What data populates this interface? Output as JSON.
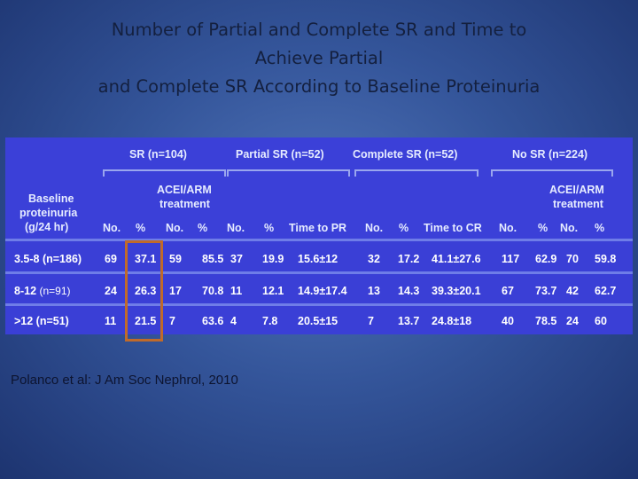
{
  "title": {
    "line1": "Number of Partial and Complete SR and Time to",
    "line2": "Achieve Partial",
    "line3": "and Complete SR According to Baseline Proteinuria"
  },
  "table": {
    "group_headers": {
      "sr": "SR (n=104)",
      "partial_sr": "Partial SR (n=52)",
      "complete_sr": "Complete SR (n=52)",
      "no_sr": "No SR (n=224)"
    },
    "sub_headers": {
      "acei_left_1": "ACEI/ARM",
      "acei_left_2": "treatment",
      "acei_right_1": "ACEI/ARM",
      "acei_right_2": "treatment"
    },
    "row_header": {
      "line1": "Baseline",
      "line2": "proteinuria",
      "line3": "(g/24 hr)"
    },
    "columns": [
      "No.",
      "%",
      "No.",
      "%",
      "No.",
      "%",
      "Time to PR",
      "No.",
      "%",
      "Time to CR",
      "No.",
      "%",
      "No.",
      "%"
    ],
    "rows": [
      {
        "label_main": "3.5-8 (n=186)",
        "label_small": "",
        "cells": [
          "69",
          "37.1",
          "59",
          "85.5",
          "37",
          "19.9",
          "15.6±12",
          "32",
          "17.2",
          "41.1±27.6",
          "117",
          "62.9",
          "70",
          "59.8"
        ]
      },
      {
        "label_main": "8-12 ",
        "label_small": "(n=91)",
        "cells": [
          "24",
          "26.3",
          "17",
          "70.8",
          "11",
          "12.1",
          "14.9±17.4",
          "13",
          "14.3",
          "39.3±20.1",
          "67",
          "73.7",
          "42",
          "62.7"
        ]
      },
      {
        "label_main": ">12 (n=51)",
        "label_small": "",
        "cells": [
          "11",
          "21.5",
          "7",
          "63.6",
          "4",
          "7.8",
          "20.5±15",
          "7",
          "13.7",
          "24.8±18",
          "40",
          "78.5",
          "24",
          "60"
        ]
      }
    ]
  },
  "citation": "Polanco et al: J Am Soc Nephrol, 2010",
  "colors": {
    "panel": "#3a3fd6",
    "highlight_box": "#c06a2a",
    "title_text": "#14203f"
  }
}
